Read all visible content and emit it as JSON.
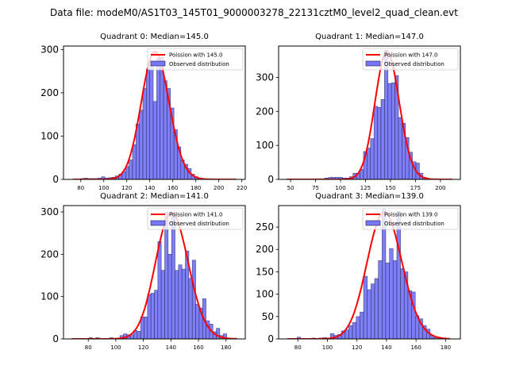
{
  "chart_data": {
    "suptitle": "Data file: modeM0/AS1T03_145T01_9000003278_22131cztM0_level2_quad_clean.evt",
    "panels": [
      {
        "type": "bar",
        "title": "Quadrant 0: Median=145.0",
        "median": 145.0,
        "legend": {
          "position": "top-right",
          "entries": [
            "Poission with 145.0",
            "Observed distribution"
          ]
        },
        "xlim": [
          65,
          223
        ],
        "ylim": [
          0,
          308
        ],
        "xticks": [
          80,
          100,
          120,
          140,
          160,
          180,
          200,
          220
        ],
        "yticks": [
          0,
          100,
          200,
          300
        ],
        "bin_width": 3,
        "bins_start": [
          74,
          77,
          80,
          83,
          86,
          89,
          92,
          95,
          98,
          101,
          104,
          107,
          110,
          113,
          116,
          119,
          122,
          125,
          128,
          131,
          134,
          137,
          140,
          143,
          146,
          149,
          152,
          155,
          158,
          161,
          164,
          167,
          170,
          173,
          176,
          179,
          182,
          185
        ],
        "counts": [
          0,
          0,
          2,
          3,
          2,
          2,
          2,
          3,
          6,
          3,
          4,
          5,
          8,
          12,
          18,
          30,
          45,
          80,
          128,
          160,
          210,
          255,
          265,
          180,
          280,
          282,
          228,
          210,
          165,
          115,
          75,
          45,
          35,
          25,
          12,
          6,
          3,
          2
        ],
        "poisson": {
          "mean": 145.0,
          "x_range": [
            73,
            215
          ],
          "peak": 295
        }
      },
      {
        "type": "bar",
        "title": "Quadrant 1: Median=147.0",
        "median": 147.0,
        "legend": {
          "position": "top-right",
          "entries": [
            "Poission with 147.0",
            "Observed distribution"
          ]
        },
        "xlim": [
          38,
          220
        ],
        "ylim": [
          0,
          392
        ],
        "xticks": [
          50,
          75,
          100,
          125,
          150,
          175,
          200
        ],
        "yticks": [
          0,
          100,
          200,
          300
        ],
        "bin_width": 3.5,
        "bins_start": [
          77,
          84,
          88,
          91.5,
          95,
          98.5,
          102,
          105.5,
          109,
          112.5,
          116,
          119.5,
          123,
          126.5,
          130,
          133.5,
          137,
          140.5,
          144,
          147.5,
          151,
          154.5,
          158,
          161.5,
          165,
          168.5,
          172,
          175.5,
          179,
          182.5,
          186
        ],
        "counts": [
          2,
          4,
          6,
          6,
          6,
          6,
          4,
          4,
          8,
          18,
          18,
          30,
          82,
          92,
          120,
          215,
          212,
          235,
          380,
          282,
          284,
          305,
          182,
          165,
          123,
          80,
          52,
          48,
          18,
          6,
          2
        ],
        "poisson": {
          "mean": 147.0,
          "x_range": [
            46,
            212
          ],
          "peak": 375
        }
      },
      {
        "type": "bar",
        "title": "Quadrant 2: Median=141.0",
        "median": 141.0,
        "legend": {
          "position": "top-right",
          "entries": [
            "Poission with 141.0",
            "Observed distribution"
          ]
        },
        "xlim": [
          62,
          194
        ],
        "ylim": [
          0,
          315
        ],
        "xticks": [
          80,
          100,
          120,
          140,
          160,
          180
        ],
        "yticks": [
          0,
          100,
          200,
          300
        ],
        "bin_width": 2.5,
        "bins_start": [
          80.5,
          85.5,
          95.5,
          100.5,
          103,
          105.5,
          108,
          110.5,
          113,
          115.5,
          118,
          120.5,
          123,
          125.5,
          128,
          130.5,
          133,
          135.5,
          138,
          140.5,
          143,
          145.5,
          148,
          150.5,
          153,
          155.5,
          158,
          160.5,
          163,
          165.5,
          168,
          170.5,
          173,
          175.5,
          178
        ],
        "counts": [
          3,
          3,
          3,
          2,
          8,
          12,
          10,
          10,
          20,
          18,
          52,
          52,
          105,
          108,
          115,
          230,
          162,
          300,
          200,
          300,
          162,
          175,
          165,
          208,
          143,
          186,
          82,
          73,
          95,
          43,
          35,
          17,
          25,
          8,
          12
        ],
        "poisson": {
          "mean": 141.0,
          "x_range": [
            68,
            188
          ],
          "peak": 298
        }
      },
      {
        "type": "bar",
        "title": "Quadrant 3: Median=139.0",
        "median": 139.0,
        "legend": {
          "position": "top-right",
          "entries": [
            "Poission with 139.0",
            "Observed distribution"
          ]
        },
        "xlim": [
          67,
          190
        ],
        "ylim": [
          0,
          298
        ],
        "xticks": [
          80,
          100,
          120,
          140,
          160,
          180
        ],
        "yticks": [
          0,
          50,
          100,
          150,
          200,
          250
        ],
        "bin_width": 2.5,
        "bins_start": [
          79.5,
          89.5,
          94.5,
          97,
          102,
          104.5,
          107,
          109.5,
          112,
          114.5,
          117,
          119.5,
          122,
          124.5,
          127,
          129.5,
          132,
          134.5,
          137,
          139.5,
          142,
          144.5,
          147,
          149.5,
          152,
          154.5,
          157,
          159.5,
          162,
          164.5,
          167,
          169.5,
          172
        ],
        "counts": [
          4,
          2,
          2,
          3,
          12,
          8,
          10,
          18,
          20,
          30,
          37,
          50,
          60,
          140,
          110,
          123,
          135,
          175,
          290,
          170,
          202,
          175,
          285,
          157,
          150,
          108,
          105,
          52,
          45,
          30,
          22,
          8,
          3
        ],
        "poisson": {
          "mean": 139.0,
          "x_range": [
            73,
            183
          ],
          "peak": 283
        }
      }
    ],
    "colors": {
      "bar_fill": "#7777f7",
      "bar_edge": "#1a1a40",
      "poisson_line": "#ff0000"
    }
  }
}
